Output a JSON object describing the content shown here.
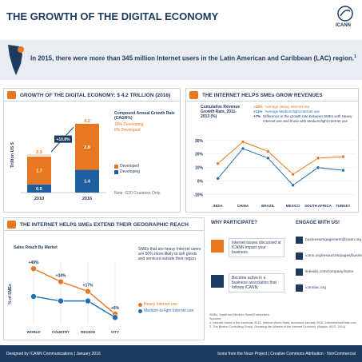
{
  "header": {
    "title": "THE GROWTH OF THE DIGITAL ECONOMY",
    "logo": "ICANN"
  },
  "banner": {
    "text": "In 2015, there were more than 345 million Internet users in the Latin American and Caribbean (LAC) region.",
    "footnote": "1"
  },
  "economy": {
    "title": "GROWTH OF THE DIGITAL ECONOMY: $ 4.2 TRILLION (2016)",
    "cagr_title": "Compound Annual Growth Rate (CAGR%)",
    "cagr_lines": [
      "18% Developing",
      "8% Developed"
    ],
    "note": "Note: G20 Countries Only.",
    "chart_data": {
      "type": "bar",
      "ylabel": "Trillion US $",
      "categories": [
        "2010",
        "2016"
      ],
      "ylim": [
        0,
        4.6
      ],
      "series": [
        {
          "name": "Developing",
          "color": "#1f5fa0",
          "values": [
            0.5,
            1.4
          ]
        },
        {
          "name": "Developed",
          "color": "#e87722",
          "values": [
            1.7,
            2.8
          ]
        }
      ],
      "totals": [
        2.3,
        4.2
      ],
      "growth_label": "+10.8%"
    }
  },
  "revenue": {
    "title": "THE INTERNET HELPS SMEs GROW REVENUES",
    "chart_data": {
      "type": "line",
      "title": "Cumulative Revenue Growth Rate, 2011-2013 (%)",
      "categories": [
        "INDIA",
        "CHINA",
        "BRAZIL",
        "MEXICO",
        "SOUTH AFRICA",
        "TURKEY"
      ],
      "ylim": [
        -12,
        34
      ],
      "yticks": [
        {
          "value": 30,
          "label": "30%"
        },
        {
          "value": 20,
          "label": "20%"
        },
        {
          "value": 10,
          "label": "10%"
        },
        {
          "value": 0,
          "label": "0%"
        },
        {
          "value": -10,
          "label": "-10%"
        }
      ],
      "series": [
        {
          "name": "Average Heavy Internet use",
          "legend_value": "+18%",
          "color": "#e87722",
          "values": [
            13,
            29,
            22,
            5,
            17,
            18
          ]
        },
        {
          "name": "Average Medium/light Internet use",
          "legend_value": "+11%",
          "color": "#1f6fb2",
          "values": [
            2,
            24,
            17,
            -3,
            10,
            8
          ]
        }
      ],
      "difference": {
        "value_label": "+7%",
        "text": "Difference in the growth rate between SMEs with Heavy Internet use and those with Medium/light Internet use"
      }
    }
  },
  "reach": {
    "title": "THE INTERNET HELPS SMEs EXTEND THEIR GEOGRAPHIC REACH",
    "text": "SMEs that are heavy Internet users are 50% more likely to sell goods and services outside their region.",
    "chart_data": {
      "type": "line",
      "title": "Sales Reach By Market",
      "ylabel": "% of SMEs",
      "categories": [
        "WORLD",
        "COUNTRY",
        "REGION",
        "CITY"
      ],
      "ylim": [
        0,
        110
      ],
      "series": [
        {
          "name": "Heavy Internet use",
          "color": "#e87722",
          "values": [
            97,
            74,
            57,
            17
          ]
        },
        {
          "name": "Medium-to-light Internet use",
          "color": "#1f6fb2",
          "values": [
            48,
            40,
            40,
            11
          ]
        }
      ],
      "differences": [
        49,
        34,
        17,
        6
      ],
      "difference_labels": [
        "+49%",
        "+34%",
        "+17%",
        "+6%"
      ]
    }
  },
  "why": {
    "title": "WHY PARTICIPATE?",
    "items": [
      "Internet issues discussed at ICANN impact your business.",
      "Become active in a business association that follows ICANN."
    ]
  },
  "engage": {
    "title": "ENGAGE WITH US!",
    "items": [
      "businessengagement@icann.org",
      "icann.org/resources/pages/business",
      "linkedin.com/company/icann",
      "icannlac.org"
    ]
  },
  "sources": {
    "lines": [
      "SMEs: Small and Medium Sized Enterprises.",
      "Sources:",
      "1. Internet Users in the Americas 2015. Internet World Stats, accessed January 2016. InternetWorldStats.com",
      "2. The Boston Consulting Group. Greasing the Wheels of the Internet Economy. (Boston: BCG, 2014)."
    ]
  },
  "footer": {
    "left": "Designed by ICANN Communications | January 2016",
    "right": "Icons from the Noun Project | Creative Commons Attribution - NonCommercial"
  }
}
